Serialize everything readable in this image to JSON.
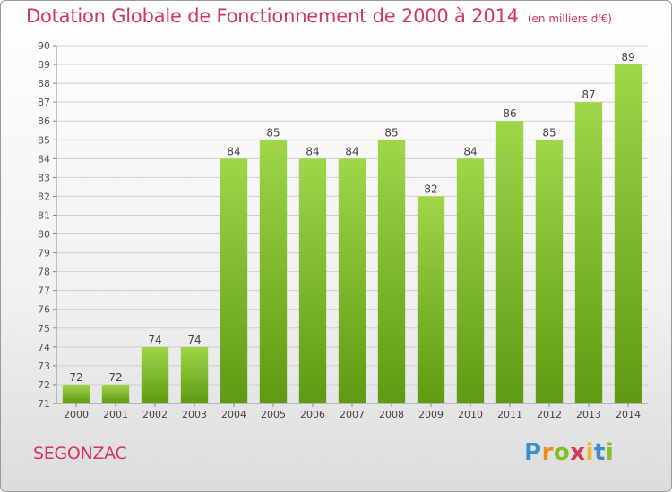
{
  "title": "Dotation Globale de Fonctionnement de 2000 à 2014",
  "subtitle": "(en milliers d'€)",
  "commune": "SEGONZAC",
  "brand": {
    "letters": [
      "P",
      "r",
      "o",
      "x",
      "i",
      "t",
      "i"
    ],
    "colors": [
      "#3a8fd0",
      "#f08a1c",
      "#7fbf2a",
      "#d23a5a",
      "#f0b81c",
      "#3a8fd0",
      "#7fbf2a"
    ]
  },
  "colors": {
    "accent": "#d2365c",
    "bar_light": "#9fd64a",
    "bar_dark": "#5e9a12",
    "grid": "#d0d0d0"
  },
  "chart_data": {
    "type": "bar",
    "title": "Dotation Globale de Fonctionnement de 2000 à 2014",
    "subtitle": "(en milliers d'€)",
    "categories": [
      "2000",
      "2001",
      "2002",
      "2003",
      "2004",
      "2005",
      "2006",
      "2007",
      "2008",
      "2009",
      "2010",
      "2011",
      "2012",
      "2013",
      "2014"
    ],
    "values": [
      72,
      72,
      74,
      74,
      84,
      85,
      84,
      84,
      85,
      82,
      84,
      86,
      85,
      87,
      89
    ],
    "ylim": [
      71,
      90
    ],
    "yticks": [
      71,
      72,
      73,
      74,
      75,
      76,
      77,
      78,
      79,
      80,
      81,
      82,
      83,
      84,
      85,
      86,
      87,
      88,
      89,
      90
    ],
    "grid": true,
    "xlabel": "",
    "ylabel": ""
  }
}
